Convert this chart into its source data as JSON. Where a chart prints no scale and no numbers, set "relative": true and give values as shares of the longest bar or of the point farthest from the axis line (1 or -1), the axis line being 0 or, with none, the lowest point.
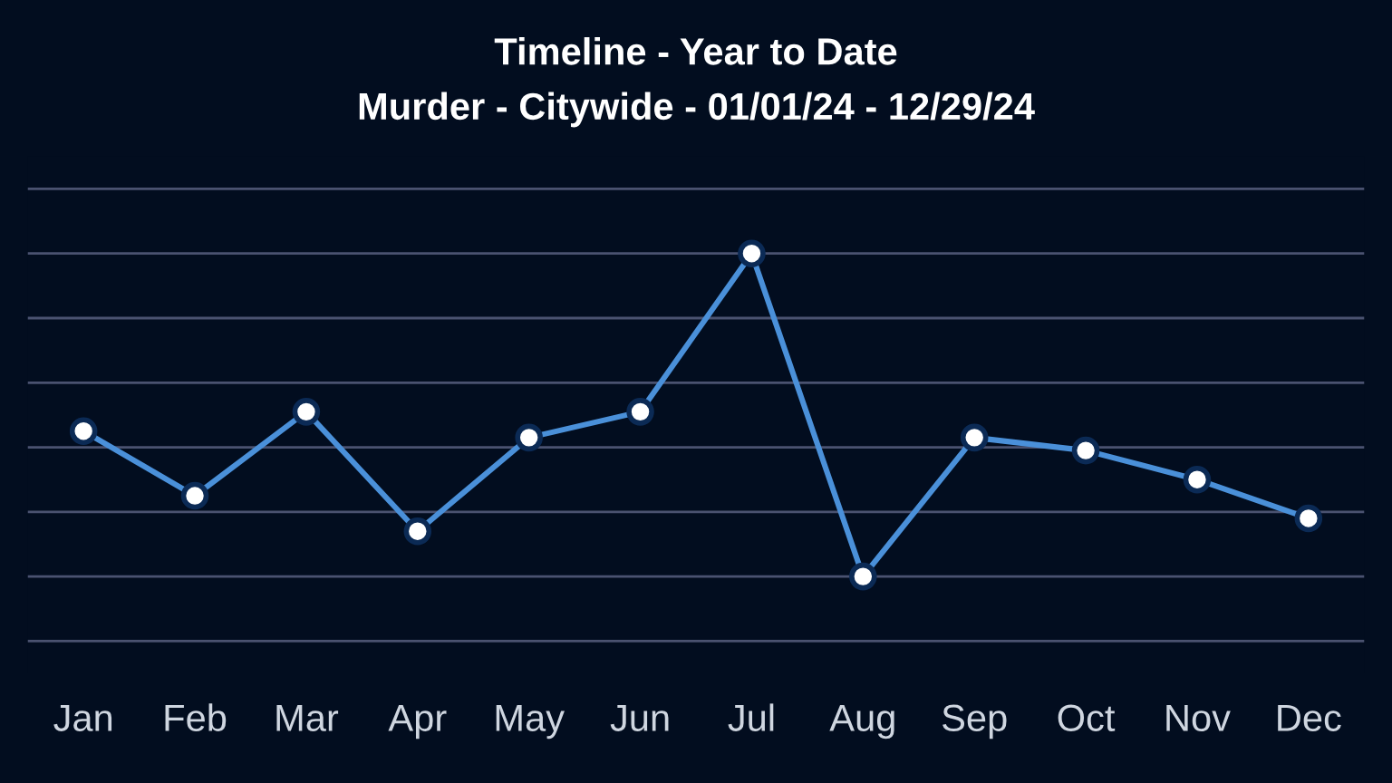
{
  "chart_data": {
    "type": "line",
    "title": "Timeline - Year to Date",
    "subtitle": "Murder - Citywide - 01/01/24 - 12/29/24",
    "categories": [
      "Jan",
      "Feb",
      "Mar",
      "Apr",
      "May",
      "Jun",
      "Jul",
      "Aug",
      "Sep",
      "Oct",
      "Nov",
      "Dec"
    ],
    "series": [
      {
        "color": "#4a90d9",
        "values": [
          0.45,
          0.25,
          0.51,
          0.14,
          0.43,
          0.51,
          1,
          0,
          0.43,
          0.39,
          0.3,
          0.18
        ]
      }
    ],
    "relative": true,
    "grid": "y",
    "marker": "circle",
    "line_style": "solid",
    "legend": false
  }
}
